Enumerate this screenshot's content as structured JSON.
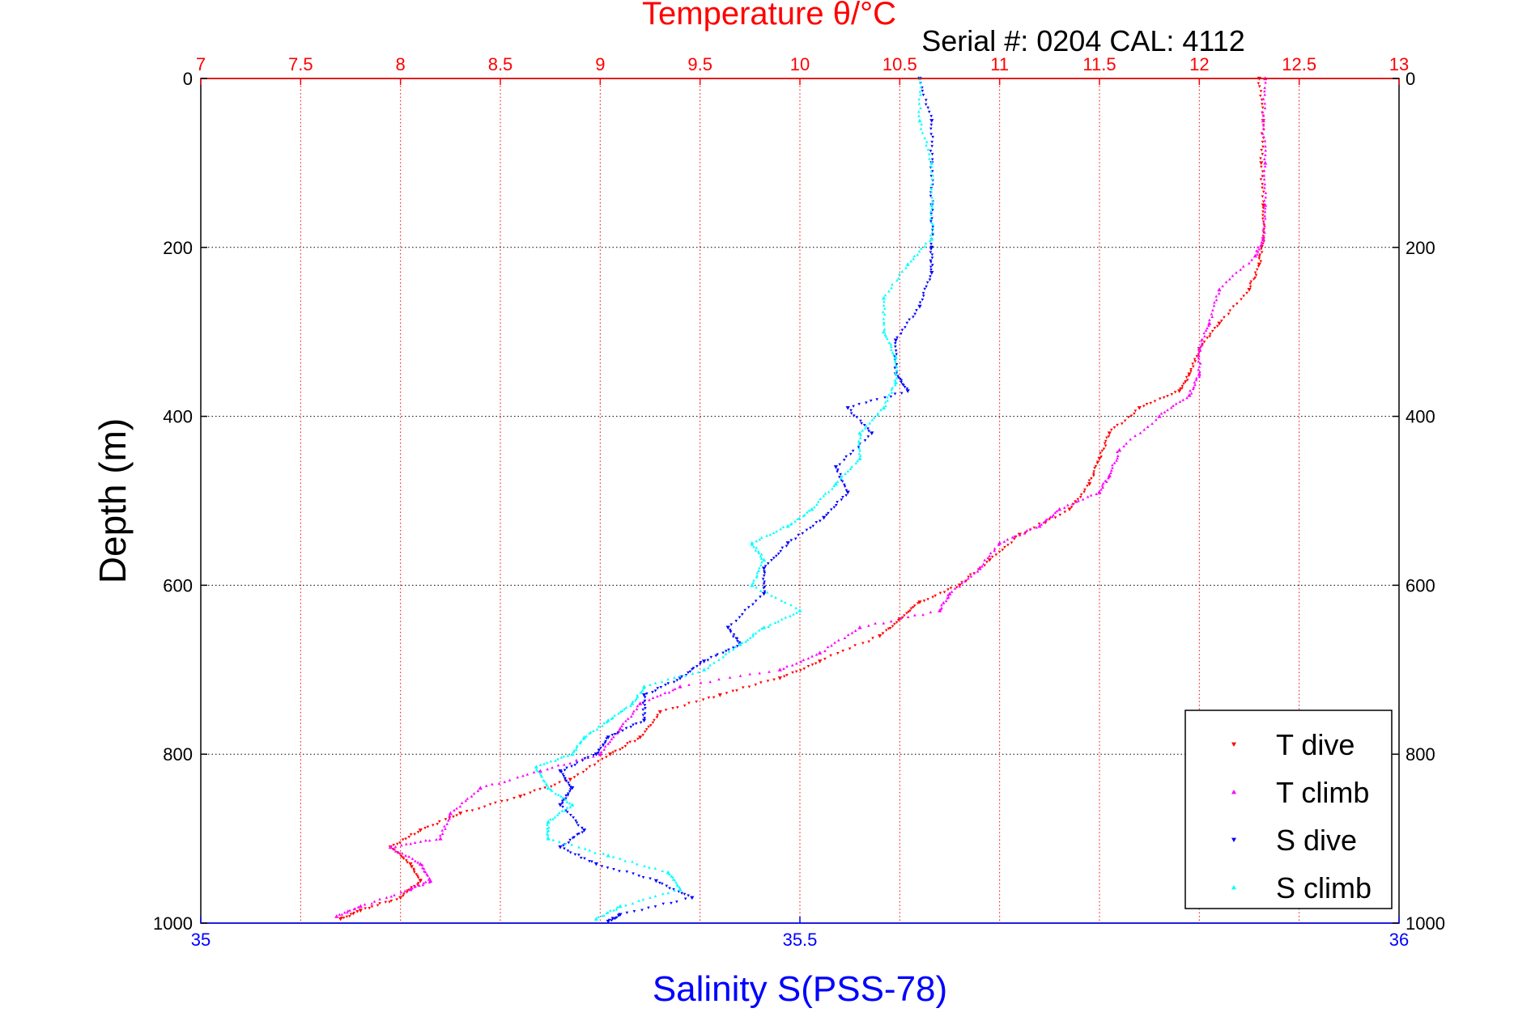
{
  "chart_data": {
    "type": "scatter",
    "title": "Temperature θ/°C",
    "subtitle": "Serial #: 0204  CAL: 4112",
    "ylabel": "Depth (m)",
    "xlabel_bottom": "Salinity S(PSS-78)",
    "top_axis": {
      "range": [
        7,
        13
      ],
      "ticks": [
        "7",
        "7.5",
        "8",
        "8.5",
        "9",
        "9.5",
        "10",
        "10.5",
        "11",
        "11.5",
        "12",
        "12.5",
        "13"
      ],
      "color": "#ff0000"
    },
    "bottom_axis": {
      "range": [
        35,
        36
      ],
      "ticks": [
        "35",
        "35.5",
        "36"
      ],
      "color": "#0000ff"
    },
    "y_axis": {
      "range": [
        0,
        1000
      ],
      "reversed": true,
      "ticks": [
        "0",
        "200",
        "400",
        "600",
        "800",
        "1000"
      ]
    },
    "grid": true,
    "legend": {
      "position": "bottom-right"
    },
    "series": [
      {
        "name": "T dive",
        "axis": "top",
        "color": "#ff0000",
        "marker": "triangle-down",
        "points": [
          [
            12.3,
            0
          ],
          [
            12.32,
            50
          ],
          [
            12.31,
            100
          ],
          [
            12.32,
            150
          ],
          [
            12.32,
            190
          ],
          [
            12.3,
            220
          ],
          [
            12.25,
            250
          ],
          [
            12.1,
            290
          ],
          [
            12.0,
            320
          ],
          [
            11.95,
            350
          ],
          [
            11.9,
            370
          ],
          [
            11.7,
            390
          ],
          [
            11.55,
            420
          ],
          [
            11.5,
            450
          ],
          [
            11.45,
            480
          ],
          [
            11.35,
            510
          ],
          [
            11.1,
            540
          ],
          [
            10.95,
            570
          ],
          [
            10.8,
            600
          ],
          [
            10.6,
            620
          ],
          [
            10.5,
            640
          ],
          [
            10.4,
            660
          ],
          [
            10.1,
            690
          ],
          [
            9.9,
            710
          ],
          [
            9.6,
            730
          ],
          [
            9.3,
            750
          ],
          [
            9.2,
            780
          ],
          [
            9.05,
            800
          ],
          [
            8.85,
            830
          ],
          [
            8.6,
            850
          ],
          [
            8.3,
            870
          ],
          [
            8.1,
            890
          ],
          [
            7.95,
            910
          ],
          [
            8.05,
            930
          ],
          [
            8.1,
            950
          ],
          [
            8.0,
            970
          ],
          [
            7.8,
            985
          ],
          [
            7.7,
            995
          ]
        ]
      },
      {
        "name": "T climb",
        "axis": "top",
        "color": "#ff00ff",
        "marker": "triangle-up",
        "points": [
          [
            12.33,
            0
          ],
          [
            12.32,
            50
          ],
          [
            12.33,
            100
          ],
          [
            12.33,
            150
          ],
          [
            12.32,
            190
          ],
          [
            12.28,
            210
          ],
          [
            12.1,
            250
          ],
          [
            12.05,
            290
          ],
          [
            12.0,
            320
          ],
          [
            12.0,
            350
          ],
          [
            11.95,
            375
          ],
          [
            11.8,
            400
          ],
          [
            11.6,
            440
          ],
          [
            11.55,
            470
          ],
          [
            11.5,
            490
          ],
          [
            11.3,
            510
          ],
          [
            11.2,
            530
          ],
          [
            11.0,
            550
          ],
          [
            10.9,
            580
          ],
          [
            10.75,
            610
          ],
          [
            10.7,
            630
          ],
          [
            10.3,
            650
          ],
          [
            10.1,
            680
          ],
          [
            9.9,
            700
          ],
          [
            9.4,
            720
          ],
          [
            9.2,
            740
          ],
          [
            9.1,
            770
          ],
          [
            9.0,
            800
          ],
          [
            8.7,
            820
          ],
          [
            8.4,
            840
          ],
          [
            8.25,
            870
          ],
          [
            8.2,
            900
          ],
          [
            7.95,
            910
          ],
          [
            8.1,
            930
          ],
          [
            8.15,
            950
          ],
          [
            8.05,
            960
          ],
          [
            7.8,
            980
          ],
          [
            7.68,
            992
          ]
        ]
      },
      {
        "name": "S dive",
        "axis": "bottom",
        "color": "#0000ff",
        "marker": "triangle-down",
        "points": [
          [
            35.6,
            0
          ],
          [
            35.61,
            50
          ],
          [
            35.61,
            100
          ],
          [
            35.61,
            150
          ],
          [
            35.61,
            200
          ],
          [
            35.61,
            230
          ],
          [
            35.6,
            270
          ],
          [
            35.58,
            310
          ],
          [
            35.58,
            350
          ],
          [
            35.59,
            370
          ],
          [
            35.54,
            390
          ],
          [
            35.56,
            420
          ],
          [
            35.53,
            460
          ],
          [
            35.54,
            490
          ],
          [
            35.52,
            520
          ],
          [
            35.49,
            550
          ],
          [
            35.47,
            580
          ],
          [
            35.47,
            610
          ],
          [
            35.44,
            650
          ],
          [
            35.45,
            670
          ],
          [
            35.42,
            690
          ],
          [
            35.4,
            710
          ],
          [
            35.37,
            730
          ],
          [
            35.37,
            760
          ],
          [
            35.34,
            780
          ],
          [
            35.33,
            800
          ],
          [
            35.3,
            820
          ],
          [
            35.31,
            840
          ],
          [
            35.3,
            860
          ],
          [
            35.32,
            890
          ],
          [
            35.3,
            910
          ],
          [
            35.33,
            930
          ],
          [
            35.38,
            950
          ],
          [
            35.41,
            970
          ],
          [
            35.35,
            990
          ],
          [
            35.34,
            998
          ]
        ]
      },
      {
        "name": "S climb",
        "axis": "bottom",
        "color": "#00ffff",
        "marker": "triangle-up",
        "points": [
          [
            35.6,
            0
          ],
          [
            35.6,
            50
          ],
          [
            35.61,
            100
          ],
          [
            35.61,
            150
          ],
          [
            35.61,
            190
          ],
          [
            35.59,
            220
          ],
          [
            35.57,
            260
          ],
          [
            35.57,
            300
          ],
          [
            35.58,
            330
          ],
          [
            35.58,
            360
          ],
          [
            35.57,
            390
          ],
          [
            35.55,
            420
          ],
          [
            35.55,
            450
          ],
          [
            35.53,
            480
          ],
          [
            35.51,
            510
          ],
          [
            35.49,
            530
          ],
          [
            35.46,
            550
          ],
          [
            35.47,
            570
          ],
          [
            35.46,
            600
          ],
          [
            35.5,
            630
          ],
          [
            35.47,
            650
          ],
          [
            35.45,
            670
          ],
          [
            35.42,
            700
          ],
          [
            35.37,
            720
          ],
          [
            35.36,
            740
          ],
          [
            35.34,
            760
          ],
          [
            35.32,
            780
          ],
          [
            35.31,
            800
          ],
          [
            35.28,
            815
          ],
          [
            35.29,
            840
          ],
          [
            35.31,
            860
          ],
          [
            35.29,
            880
          ],
          [
            35.29,
            900
          ],
          [
            35.34,
            920
          ],
          [
            35.39,
            940
          ],
          [
            35.4,
            960
          ],
          [
            35.35,
            980
          ],
          [
            35.33,
            995
          ]
        ]
      }
    ]
  }
}
